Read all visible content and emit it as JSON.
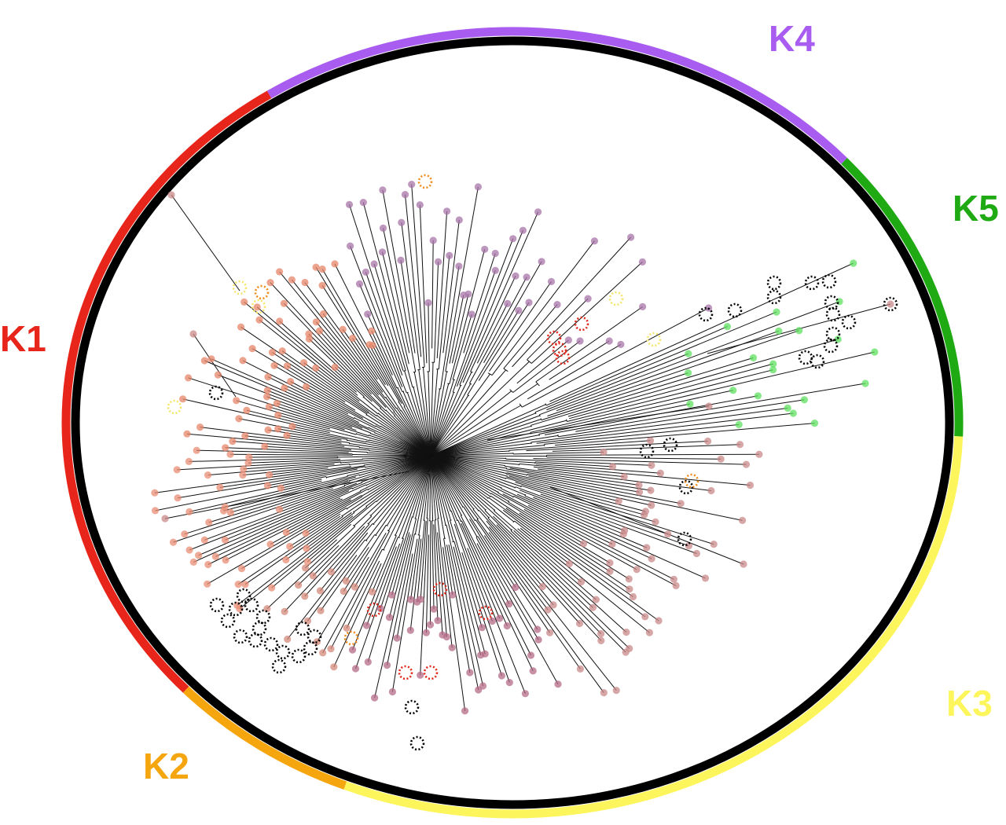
{
  "top_caption": "",
  "clusters": [
    {
      "id": "k1",
      "label": "K1",
      "color": "#e8251a"
    },
    {
      "id": "k2",
      "label": "K2",
      "color": "#f5a50e"
    },
    {
      "id": "k3",
      "label": "K3",
      "color": "#fdf55c"
    },
    {
      "id": "k4",
      "label": "K4",
      "color": "#a95cf0"
    },
    {
      "id": "k5",
      "label": "K5",
      "color": "#1faa14"
    }
  ],
  "ring_color": "#000000",
  "tip_colors": {
    "k1": "#e7866a",
    "k1b": "#e98d74",
    "k2_mix": "#d4897a",
    "k3": "#c98a8a",
    "k3_plum": "#b56b87",
    "k4": "#a774a8",
    "k5": "#5de05d",
    "marker_black": "#000000",
    "marker_orange": "#f08c1a",
    "marker_yellow": "#f6e56b",
    "marker_red": "#e2281d"
  }
}
